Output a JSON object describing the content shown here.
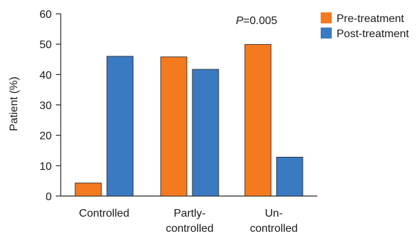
{
  "chart_data": {
    "type": "bar",
    "categories": [
      [
        "Controlled"
      ],
      [
        "Partly-",
        "controlled"
      ],
      [
        "Un-",
        "controlled"
      ]
    ],
    "series": [
      {
        "name": "Pre-treatment",
        "color": "#F47A20",
        "values": [
          4.3,
          45.8,
          49.9
        ]
      },
      {
        "name": "Post-treatment",
        "color": "#3A7AC2",
        "values": [
          46.0,
          41.7,
          12.8
        ]
      }
    ],
    "title": "",
    "xlabel": "",
    "ylabel": "Patient (%)",
    "ylim": [
      0,
      60
    ],
    "yticks": [
      0,
      10,
      20,
      30,
      40,
      50,
      60
    ],
    "grid": false,
    "legend": "top-right",
    "annotation": {
      "italic": "P",
      "rest": "=0.005"
    }
  }
}
